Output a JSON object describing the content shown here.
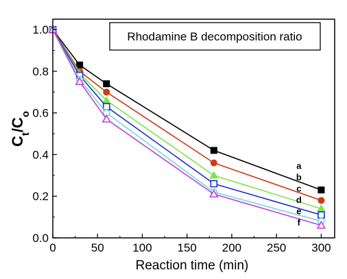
{
  "chart_data": {
    "type": "line",
    "title": "",
    "legend_box_text": "Rhodamine B decomposition ratio",
    "xlabel": "Reaction time (min)",
    "ylabel": {
      "main": "C",
      "sub1": "t",
      "slash": "/C",
      "sub2": "o"
    },
    "xlim": [
      0,
      315
    ],
    "ylim": [
      0.0,
      1.05
    ],
    "x_ticks": [
      0,
      50,
      100,
      150,
      200,
      250,
      300
    ],
    "y_ticks": [
      0.0,
      0.2,
      0.4,
      0.6,
      0.8,
      1.0
    ],
    "y_tick_labels": [
      "0.0",
      "0.2",
      "0.4",
      "0.6",
      "0.8",
      "1.0"
    ],
    "x": [
      0,
      30,
      60,
      180,
      300
    ],
    "series": [
      {
        "name": "a",
        "color": "#000000",
        "marker": "square-filled",
        "values": [
          1.0,
          0.83,
          0.74,
          0.42,
          0.23
        ]
      },
      {
        "name": "b",
        "color": "#cc3a1a",
        "marker": "circle-filled",
        "values": [
          1.0,
          0.8,
          0.7,
          0.36,
          0.18
        ]
      },
      {
        "name": "c",
        "color": "#7ee44a",
        "marker": "triangle-filled",
        "values": [
          1.0,
          0.79,
          0.66,
          0.3,
          0.14
        ]
      },
      {
        "name": "d",
        "color": "#1a2ecc",
        "marker": "square-open",
        "values": [
          1.0,
          0.78,
          0.63,
          0.26,
          0.11
        ]
      },
      {
        "name": "e",
        "color": "#6fd8dc",
        "marker": "circle-open",
        "values": [
          1.0,
          0.76,
          0.6,
          0.22,
          0.08
        ]
      },
      {
        "name": "f",
        "color": "#c040d8",
        "marker": "triangle-open",
        "values": [
          1.0,
          0.75,
          0.57,
          0.21,
          0.06
        ]
      }
    ],
    "grid": false,
    "legend": "top-right"
  }
}
